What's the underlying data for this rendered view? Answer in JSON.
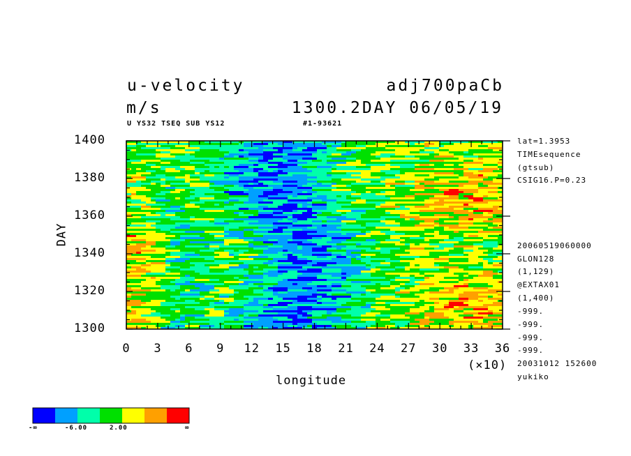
{
  "header": {
    "title_left": "u-velocity",
    "title_right": "adj700paCb",
    "units": "m/s",
    "time_label": "1300.2DAY 06/05/19",
    "subtitle_left": "U YS32 TSEQ SUB YS12",
    "subtitle_right": "#1-93621"
  },
  "info_lines": [
    "lat=1.3953",
    "TIMEsequence",
    "(gtsub)",
    "CSIG16.P=0.23",
    "20060519060000",
    "GLON128",
    "(1,129)",
    "@EXTAX01",
    "(1,400)",
    "-999.",
    "-999.",
    "-999.",
    "-999.",
    "20031012 152600",
    "yukiko"
  ],
  "colorbar": {
    "colors": [
      "#0000ff",
      "#00a0ff",
      "#00ffaa",
      "#00e000",
      "#ffff00",
      "#ffa000",
      "#ff0000"
    ],
    "labels": [
      "-∞",
      "-6.00",
      "2.00",
      "∞"
    ]
  },
  "chart_data": {
    "type": "heatmap",
    "title": "u-velocity",
    "xlabel": "longitude",
    "ylabel": "DAY",
    "x_multiplier": "(×10)",
    "xlim": [
      0,
      36
    ],
    "ylim": [
      1300,
      1400
    ],
    "x_ticks": [
      "0",
      "3",
      "6",
      "9",
      "12",
      "15",
      "18",
      "21",
      "24",
      "27",
      "30",
      "33",
      "36"
    ],
    "y_ticks": [
      "1300",
      "1320",
      "1340",
      "1360",
      "1380",
      "1400"
    ],
    "grid": false,
    "legend": "bottom-left colorbar"
  }
}
